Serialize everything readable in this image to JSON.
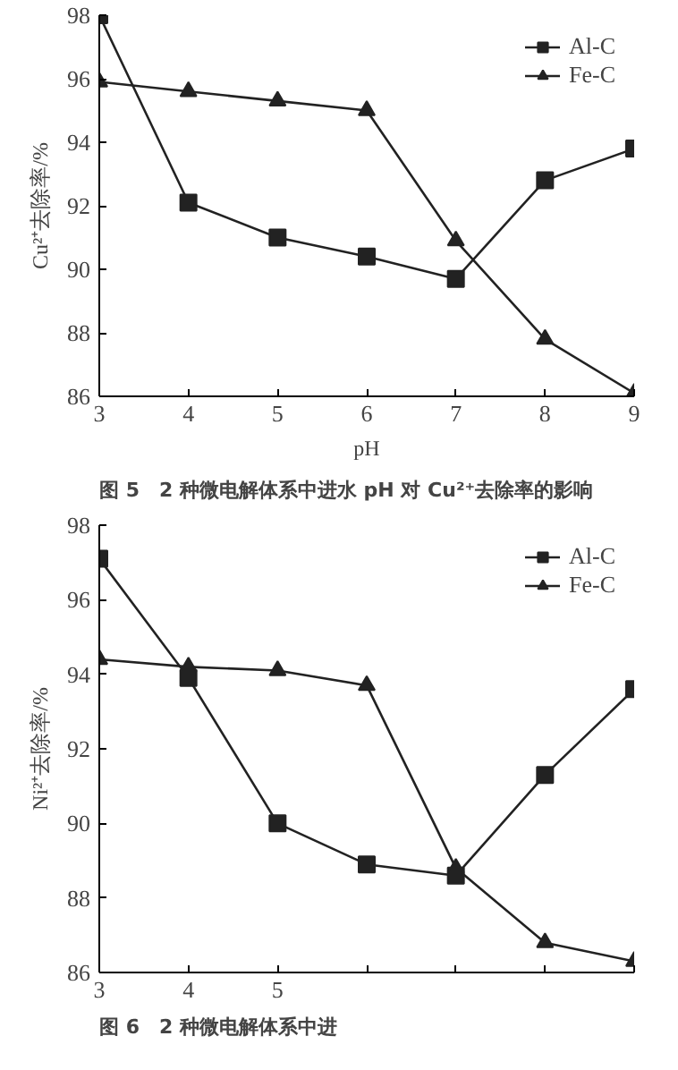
{
  "chart_data": [
    {
      "type": "line",
      "xlabel": "pH",
      "ylabel": "Cu²⁺去除率/%",
      "annotations": [
        "图 5　2 种微电解体系中进水 pH 对 Cu²⁺去除率的影响"
      ],
      "x": [
        3,
        4,
        5,
        6,
        7,
        8,
        9
      ],
      "xlim": [
        3,
        9
      ],
      "xticks": [
        3,
        4,
        5,
        6,
        7,
        8,
        9
      ],
      "ylim": [
        86,
        98
      ],
      "yticks": [
        86,
        88,
        90,
        92,
        94,
        96,
        98
      ],
      "grid": false,
      "legend": "top right",
      "series": [
        {
          "name": "Al-C",
          "color": "#222222",
          "marker": "square",
          "values": [
            98.0,
            92.1,
            91.0,
            90.4,
            89.7,
            92.8,
            93.8
          ]
        },
        {
          "name": "Fe-C",
          "color": "#222222",
          "marker": "triangle",
          "values": [
            95.9,
            95.6,
            95.3,
            95.0,
            90.9,
            87.8,
            86.1
          ]
        }
      ]
    },
    {
      "type": "line",
      "ylabel": "Ni²⁺去除率/%",
      "annotations": [
        "图 6　2 种微电解体系中进"
      ],
      "x": [
        3,
        4,
        5,
        6,
        7,
        8,
        9
      ],
      "xlim": [
        3,
        9
      ],
      "xticks": [
        3,
        4,
        5,
        {
          "value": 6,
          "label": null
        },
        {
          "value": 7,
          "label": null
        },
        {
          "value": 8,
          "label": null
        },
        {
          "value": 9,
          "label": null
        }
      ],
      "ylim": [
        86,
        98
      ],
      "yticks": [
        86,
        88,
        90,
        92,
        94,
        96,
        98
      ],
      "grid": false,
      "legend": "top right",
      "series": [
        {
          "name": "Al-C",
          "color": "#222222",
          "marker": "square",
          "values": [
            97.1,
            93.9,
            90.0,
            88.9,
            88.6,
            91.3,
            93.6
          ]
        },
        {
          "name": "Fe-C",
          "color": "#222222",
          "marker": "triangle",
          "values": [
            94.4,
            94.2,
            94.1,
            93.7,
            88.8,
            86.8,
            86.3
          ]
        }
      ]
    }
  ]
}
